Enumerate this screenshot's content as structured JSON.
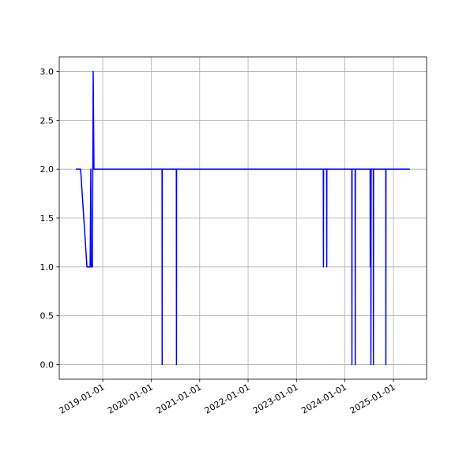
{
  "chart_data": {
    "type": "line",
    "x": [
      "2018-06-12",
      "2018-07-18",
      "2018-09-04",
      "2018-09-28",
      "2018-10-03",
      "2018-10-06",
      "2018-10-15",
      "2018-10-21",
      "2018-10-27",
      "2020-03-23",
      "2020-03-24",
      "2020-03-25",
      "2020-07-09",
      "2020-07-10",
      "2020-07-11",
      "2023-07-22",
      "2023-07-23",
      "2023-07-24",
      "2023-08-16",
      "2023-08-17",
      "2023-08-18",
      "2024-02-22",
      "2024-02-23",
      "2024-02-24",
      "2024-03-18",
      "2024-03-19",
      "2024-03-20",
      "2024-07-09",
      "2024-07-10",
      "2024-07-12",
      "2024-07-14",
      "2024-07-15",
      "2024-07-17",
      "2024-08-02",
      "2024-08-03",
      "2024-08-04",
      "2024-11-04",
      "2024-11-05",
      "2024-11-06",
      "2025-05-05"
    ],
    "values": [
      2,
      2,
      1,
      1,
      2,
      1,
      1,
      3,
      2,
      2,
      0,
      2,
      2,
      0,
      2,
      2,
      1,
      2,
      2,
      1,
      2,
      2,
      0,
      2,
      2,
      0,
      2,
      2,
      1,
      2,
      2,
      0,
      2,
      2,
      0,
      2,
      2,
      0,
      2,
      2
    ],
    "color": "#0000ff",
    "xlim": [
      "2018-02-07",
      "2025-09-08"
    ],
    "xticks": [
      "2019-01-01",
      "2020-01-01",
      "2021-01-01",
      "2022-01-01",
      "2023-01-01",
      "2024-01-01",
      "2025-01-01"
    ],
    "ylim": [
      -0.15,
      3.15
    ],
    "yticks": [
      {
        "value": 0,
        "label": "0.0"
      },
      {
        "value": 0.5,
        "label": "0.5"
      },
      {
        "value": 1,
        "label": "1.0"
      },
      {
        "value": 1.5,
        "label": "1.5"
      },
      {
        "value": 2,
        "label": "2.0"
      },
      {
        "value": 2.5,
        "label": "2.5"
      },
      {
        "value": 3,
        "label": "3.0"
      }
    ],
    "grid": true
  }
}
